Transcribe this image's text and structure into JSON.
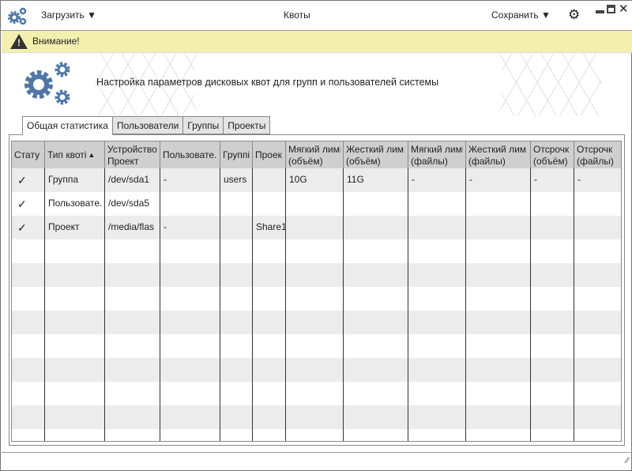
{
  "title": "Квоты",
  "toolbar": {
    "load": "Загрузить",
    "save": "Сохранить"
  },
  "warning": "Внимание!",
  "header_text": "Настройка параметров дисковых квот для групп и пользователей системы",
  "tabs": [
    {
      "label": "Общая статистика",
      "active": true
    },
    {
      "label": "Пользователи"
    },
    {
      "label": "Группы"
    },
    {
      "label": "Проекты"
    }
  ],
  "columns": [
    [
      "Стату",
      ""
    ],
    [
      "Тип квоті",
      ""
    ],
    [
      "Устройство",
      "Проект"
    ],
    [
      "Пользовате.",
      ""
    ],
    [
      "Группі",
      ""
    ],
    [
      "Проек",
      ""
    ],
    [
      "Мягкий лимі",
      "(объём)"
    ],
    [
      "Жесткий лим",
      "(объём)"
    ],
    [
      "Мягкий лимі",
      "(файлы)"
    ],
    [
      "Жесткий лим",
      "(файлы)"
    ],
    [
      "Отсрочк",
      "(объём)"
    ],
    [
      "Отсрочк",
      "(файлы)"
    ]
  ],
  "sort_column": 1,
  "rows": [
    [
      "✓",
      "Группа",
      "/dev/sda1",
      "-",
      "users",
      "",
      "10G",
      "11G",
      "-",
      "-",
      "-",
      "-"
    ],
    [
      "✓",
      "Пользовате.",
      "/dev/sda5",
      "",
      "",
      "",
      "",
      "",
      "",
      "",
      "",
      ""
    ],
    [
      "✓",
      "Проект",
      "/media/flas",
      "-",
      "",
      "Share1",
      "",
      "",
      "",
      "",
      "",
      ""
    ]
  ],
  "colors": {
    "accent": "#4f78a8",
    "warning_bg": "#f3efae",
    "header_bg": "#cfcfcf",
    "row_alt": "#ececec"
  }
}
